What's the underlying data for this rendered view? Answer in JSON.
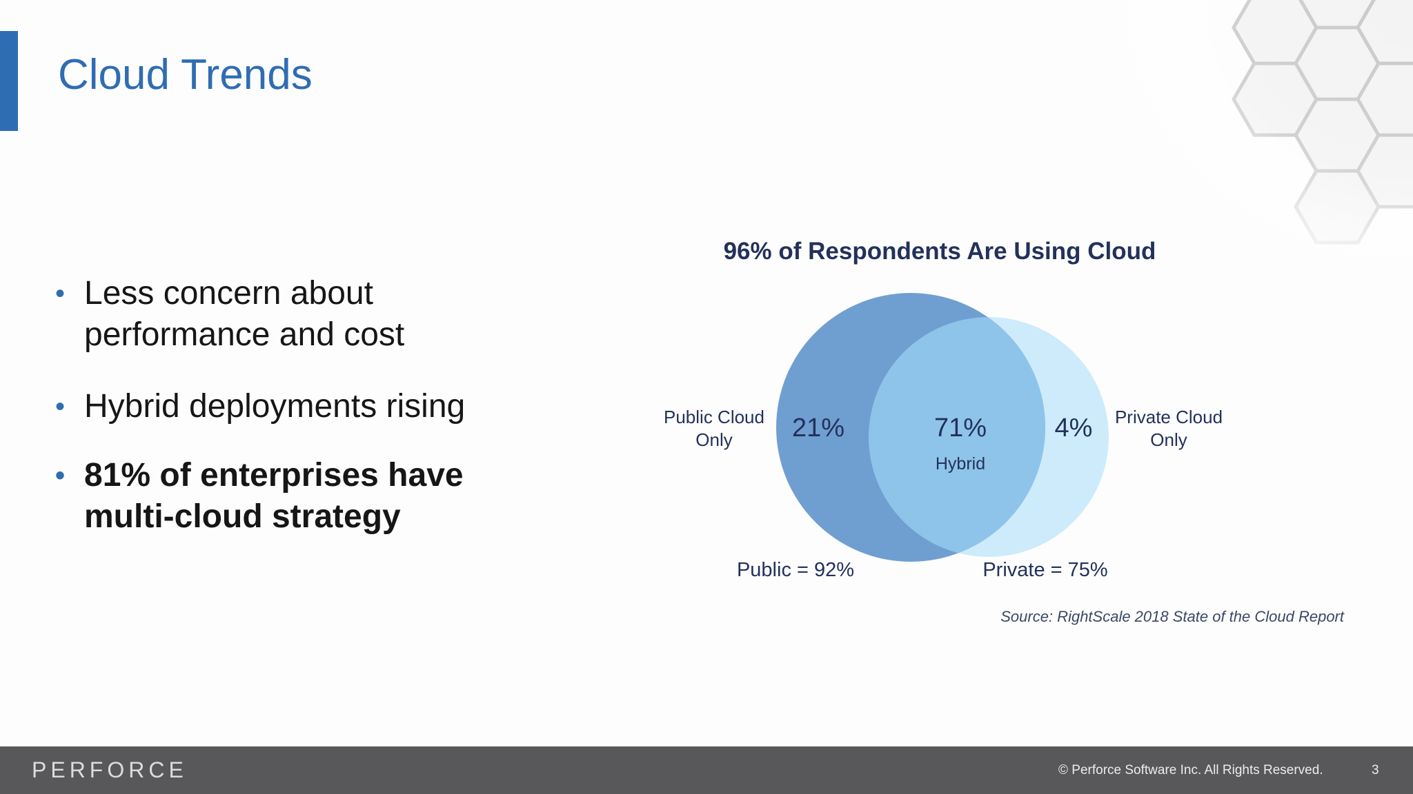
{
  "slide": {
    "title": "Cloud Trends",
    "page_number": "3",
    "colors": {
      "accent": "#2f6db3",
      "footer": "#58585a",
      "public_circle": "#6f9fd1",
      "private_circle": "#cdebfb",
      "overlap": "#8fc4ea",
      "label_text": "#23315a"
    }
  },
  "bullets": [
    {
      "text": "Less concern about performance and cost"
    },
    {
      "text": "Hybrid deployments rising"
    },
    {
      "text": "81% of enterprises have multi-cloud strategy"
    }
  ],
  "chart_data": {
    "type": "venn",
    "title": "96% of Respondents Are Using Cloud",
    "sets": [
      {
        "name": "Public",
        "total_label": "Public = 92%",
        "total_percent": 92,
        "only_label_line1": "Public Cloud",
        "only_label_line2": "Only",
        "only_percent_label": "21%",
        "only_percent": 21
      },
      {
        "name": "Private",
        "total_label": "Private = 75%",
        "total_percent": 75,
        "only_label_line1": "Private Cloud",
        "only_label_line2": "Only",
        "only_percent_label": "4%",
        "only_percent": 4
      }
    ],
    "intersection": {
      "name": "Hybrid",
      "label": "Hybrid",
      "percent_label": "71%",
      "percent": 71
    },
    "source": "Source: RightScale 2018 State of the Cloud Report"
  },
  "footer": {
    "logo_text": "PERFORCE",
    "copyright": "© Perforce Software Inc. All Rights Reserved."
  }
}
